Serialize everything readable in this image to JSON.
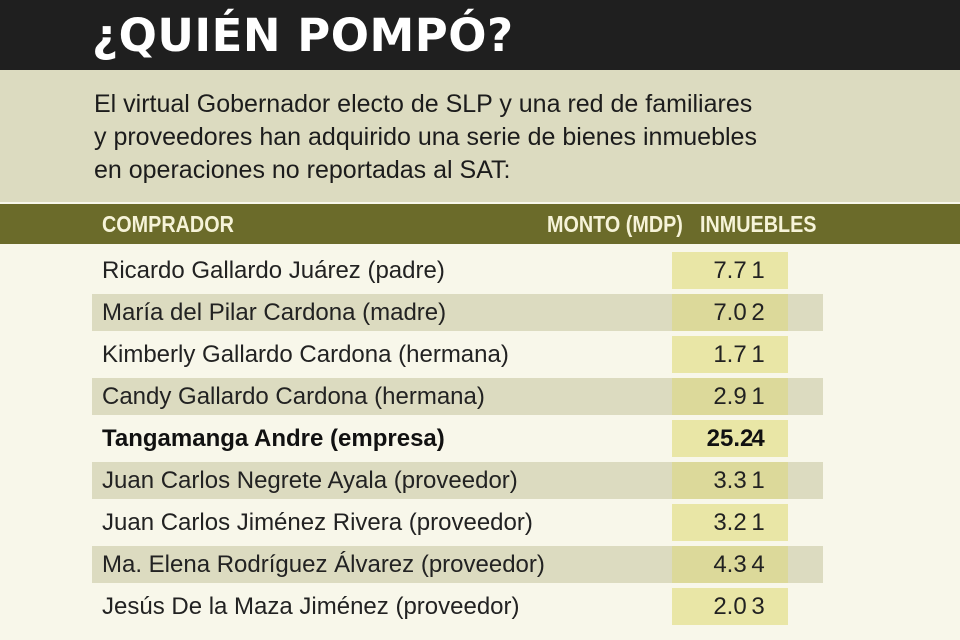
{
  "title": "¿QUIÉN POMPÓ?",
  "intro": [
    "El virtual Gobernador electo de SLP y una red de familiares",
    "y proveedores han adquirido una serie de bienes inmuebles",
    "en operaciones no reportadas al SAT:"
  ],
  "colors": {
    "title_bar": "#1f1f1f",
    "header": "#6b6b2a",
    "band": "#dcdbc0",
    "amount_highlight": "#e9e6a6"
  },
  "chart_data": {
    "type": "table",
    "columns": [
      "COMPRADOR",
      "MONTO (MDP)",
      "INMUEBLES"
    ],
    "rows": [
      {
        "name": "Ricardo Gallardo Juárez (padre)",
        "amount": "7.7",
        "count": "1",
        "bold": false
      },
      {
        "name": "María del Pilar Cardona (madre)",
        "amount": "7.0",
        "count": "2",
        "bold": false
      },
      {
        "name": "Kimberly Gallardo Cardona (hermana)",
        "amount": "1.7",
        "count": "1",
        "bold": false
      },
      {
        "name": "Candy Gallardo Cardona (hermana)",
        "amount": "2.9",
        "count": "1",
        "bold": false
      },
      {
        "name": "Tangamanga Andre (empresa)",
        "amount": "25.2",
        "count": "4",
        "bold": true
      },
      {
        "name": "Juan Carlos Negrete Ayala (proveedor)",
        "amount": "3.3",
        "count": "1",
        "bold": false
      },
      {
        "name": "Juan Carlos Jiménez Rivera (proveedor)",
        "amount": "3.2",
        "count": "1",
        "bold": false
      },
      {
        "name": "Ma. Elena Rodríguez Álvarez (proveedor)",
        "amount": "4.3",
        "count": "4",
        "bold": false
      },
      {
        "name": "Jesús De la Maza Jiménez (proveedor)",
        "amount": "2.0",
        "count": "3",
        "bold": false
      }
    ]
  }
}
